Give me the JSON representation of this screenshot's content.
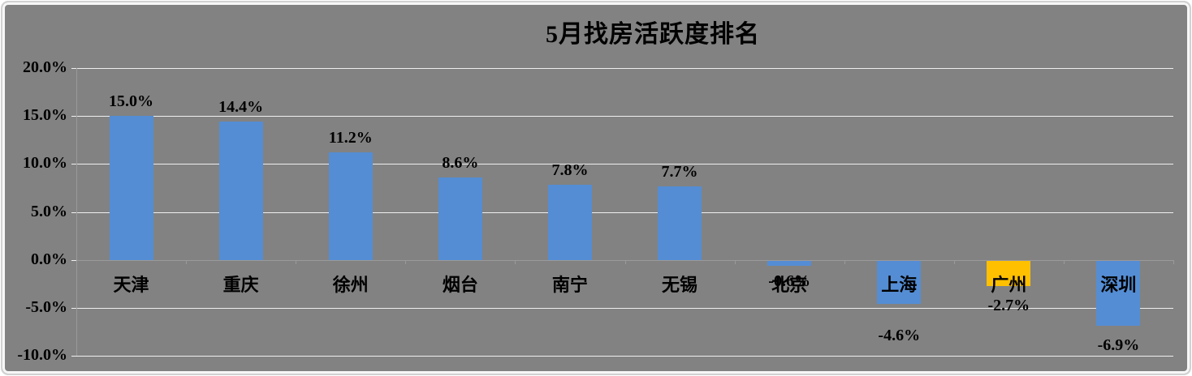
{
  "title": "5月找房活跃度排名",
  "colors": {
    "background": "#828282",
    "bar_blue": "#548DD4",
    "bar_orange": "#FFC000",
    "gridline": "#EFEFEF",
    "axis": "#9A9A9A",
    "text": "#000000",
    "frame_outer": "#D2D2D2",
    "frame_inner": "#F7F7F7"
  },
  "chart_data": {
    "type": "bar",
    "title": "5月找房活跃度排名",
    "categories": [
      "天津",
      "重庆",
      "徐州",
      "烟台",
      "南宁",
      "无锡",
      "北京",
      "上海",
      "广州",
      "深圳"
    ],
    "values": [
      15.0,
      14.4,
      11.2,
      8.6,
      7.8,
      7.7,
      -0.6,
      -4.6,
      -2.7,
      -6.9
    ],
    "data_labels": [
      "15.0%",
      "14.4%",
      "11.2%",
      "8.6%",
      "7.8%",
      "7.7%",
      "-0.6%",
      "-4.6%",
      "-2.7%",
      "-6.9%"
    ],
    "bar_colors": [
      "blue",
      "blue",
      "blue",
      "blue",
      "blue",
      "blue",
      "blue",
      "blue",
      "orange",
      "blue"
    ],
    "xlabel": "",
    "ylabel": "",
    "ylim": [
      -10,
      20
    ],
    "ytick_interval": 5,
    "yticks": [
      20,
      15,
      10,
      5,
      0,
      -5,
      -10
    ],
    "ytick_labels": [
      "20.0%",
      "15.0%",
      "10.0%",
      "5.0%",
      "0.0%",
      "-5.0%",
      "-10.0%"
    ],
    "grid": true,
    "legend": false
  }
}
